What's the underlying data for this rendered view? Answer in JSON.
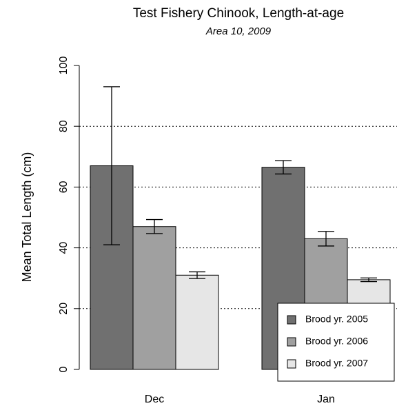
{
  "chart_data": {
    "type": "bar",
    "title": "Test Fishery Chinook, Length-at-age",
    "subtitle": "Area 10, 2009",
    "y_label": "Mean Total Length (cm)",
    "categories": [
      "Dec",
      "Jan"
    ],
    "series": [
      {
        "name": "Brood yr. 2005",
        "color": "#707070",
        "values": [
          67,
          66.5
        ],
        "errors": [
          26,
          2.2
        ]
      },
      {
        "name": "Brood yr. 2006",
        "color": "#a0a0a0",
        "values": [
          47,
          43
        ],
        "errors": [
          2.3,
          2.4
        ]
      },
      {
        "name": "Brood yr. 2007",
        "color": "#e6e6e6",
        "values": [
          31,
          29.5
        ],
        "errors": [
          1.1,
          0.6
        ]
      }
    ],
    "ylim": [
      0,
      100
    ],
    "yticks": [
      0,
      20,
      40,
      60,
      80,
      100
    ],
    "grid": true,
    "legend": "bottom-right"
  }
}
